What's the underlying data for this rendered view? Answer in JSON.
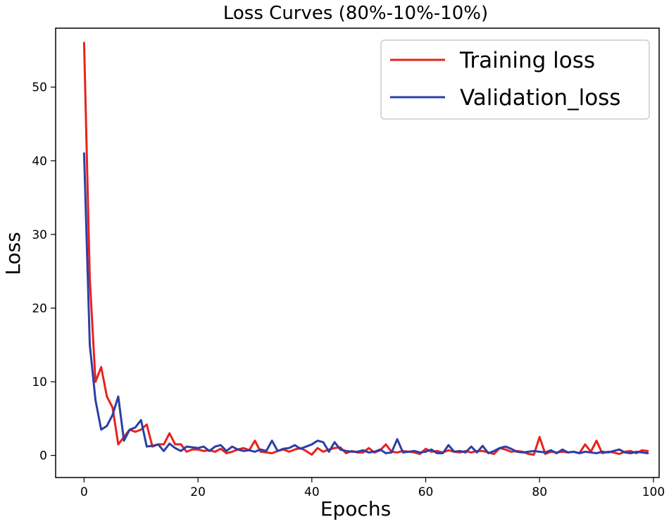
{
  "chart_data": {
    "type": "line",
    "title": "Loss Curves (80%-10%-10%)",
    "xlabel": "Epochs",
    "ylabel": "Loss",
    "xlim": [
      -5,
      101
    ],
    "ylim": [
      -3,
      58
    ],
    "xticks": [
      0,
      20,
      40,
      60,
      80,
      100
    ],
    "yticks": [
      0,
      10,
      20,
      30,
      40,
      50
    ],
    "grid": false,
    "legend_position": "top-right",
    "x": [
      0,
      1,
      2,
      3,
      4,
      5,
      6,
      7,
      8,
      9,
      10,
      11,
      12,
      13,
      14,
      15,
      16,
      17,
      18,
      19,
      20,
      21,
      22,
      23,
      24,
      25,
      26,
      27,
      28,
      29,
      30,
      31,
      32,
      33,
      34,
      35,
      36,
      37,
      38,
      39,
      40,
      41,
      42,
      43,
      44,
      45,
      46,
      47,
      48,
      49,
      50,
      51,
      52,
      53,
      54,
      55,
      56,
      57,
      58,
      59,
      60,
      61,
      62,
      63,
      64,
      65,
      66,
      67,
      68,
      69,
      70,
      71,
      72,
      73,
      74,
      75,
      76,
      77,
      78,
      79,
      80,
      81,
      82,
      83,
      84,
      85,
      86,
      87,
      88,
      89,
      90,
      91,
      92,
      93,
      94,
      95,
      96,
      97,
      98,
      99
    ],
    "series": [
      {
        "name": "Training loss",
        "color": "#e8221c",
        "values": [
          56,
          24,
          10,
          12,
          8,
          6.5,
          1.5,
          2.5,
          3.5,
          3.2,
          3.5,
          4.2,
          1.2,
          1.5,
          1.5,
          3,
          1.5,
          1.5,
          0.5,
          0.8,
          0.8,
          0.6,
          0.7,
          0.5,
          0.9,
          0.3,
          0.5,
          0.8,
          1.0,
          0.7,
          2.0,
          0.5,
          0.4,
          0.3,
          0.6,
          0.8,
          0.5,
          0.8,
          1.0,
          0.6,
          0.1,
          1.0,
          0.5,
          0.8,
          1.0,
          1.1,
          0.3,
          0.6,
          0.4,
          0.4,
          1.0,
          0.4,
          0.7,
          1.5,
          0.5,
          0.4,
          0.6,
          0.5,
          0.4,
          0.2,
          0.9,
          0.5,
          0.6,
          0.4,
          0.7,
          0.5,
          0.4,
          0.6,
          0.4,
          0.6,
          0.6,
          0.4,
          0.2,
          1.0,
          0.8,
          0.5,
          0.6,
          0.5,
          0.2,
          0.1,
          2.5,
          0.2,
          0.5,
          0.4,
          0.5,
          0.4,
          0.5,
          0.3,
          1.5,
          0.5,
          2.0,
          0.3,
          0.5,
          0.4,
          0.2,
          0.5,
          0.6,
          0.3,
          0.7,
          0.6
        ]
      },
      {
        "name": "Validation_loss",
        "color": "#2b3fa8",
        "values": [
          41,
          15,
          7.5,
          3.5,
          4,
          5.5,
          8,
          2,
          3.5,
          3.8,
          4.8,
          1.2,
          1.3,
          1.5,
          0.6,
          1.6,
          1.0,
          0.6,
          1.2,
          1.1,
          1.0,
          1.2,
          0.6,
          1.2,
          1.4,
          0.6,
          1.2,
          0.8,
          0.6,
          0.7,
          0.5,
          0.8,
          0.6,
          2.0,
          0.6,
          0.9,
          1.0,
          1.4,
          0.9,
          1.2,
          1.5,
          2.0,
          1.8,
          0.5,
          1.8,
          0.8,
          0.6,
          0.5,
          0.5,
          0.7,
          0.4,
          0.5,
          0.8,
          0.3,
          0.4,
          2.2,
          0.4,
          0.5,
          0.6,
          0.4,
          0.5,
          0.8,
          0.3,
          0.3,
          1.4,
          0.5,
          0.6,
          0.4,
          1.2,
          0.4,
          1.3,
          0.3,
          0.6,
          1.0,
          1.2,
          0.9,
          0.5,
          0.4,
          0.5,
          0.6,
          0.5,
          0.4,
          0.7,
          0.3,
          0.8,
          0.4,
          0.5,
          0.3,
          0.5,
          0.4,
          0.3,
          0.5,
          0.4,
          0.6,
          0.8,
          0.4,
          0.3,
          0.5,
          0.4,
          0.3
        ]
      }
    ]
  }
}
